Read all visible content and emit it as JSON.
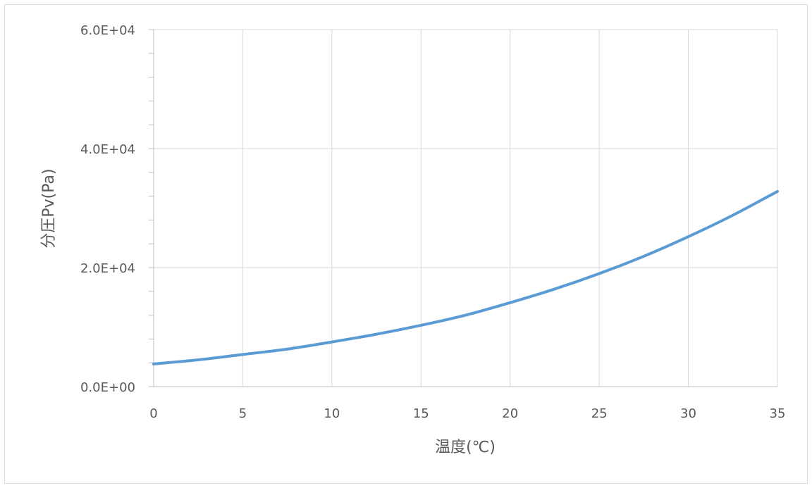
{
  "chart_data": {
    "type": "line",
    "title": "",
    "xlabel": "温度(℃)",
    "ylabel": "分圧Pv(Pa)",
    "xlim": [
      0,
      35
    ],
    "ylim": [
      0,
      60000
    ],
    "x_ticks": [
      0,
      5,
      10,
      15,
      20,
      25,
      30,
      35
    ],
    "x_tick_labels": [
      "0",
      "5",
      "10",
      "15",
      "20",
      "25",
      "30",
      "35"
    ],
    "y_ticks": [
      0,
      20000,
      40000,
      60000
    ],
    "y_tick_labels": [
      "0.0E+00",
      "2.0E+04",
      "4.0E+04",
      "6.0E+04"
    ],
    "y_minor_step": 4000,
    "grid": true,
    "legend": "none",
    "series": [
      {
        "color": "#5b9bd5",
        "x": [
          0,
          2.5,
          5,
          7.5,
          10,
          12.5,
          15,
          17.5,
          20,
          22.5,
          25,
          27.5,
          30,
          32.5,
          35
        ],
        "y": [
          3800,
          4500,
          5400,
          6300,
          7500,
          8800,
          10300,
          12000,
          14100,
          16400,
          19000,
          21900,
          25200,
          28800,
          32800
        ]
      }
    ]
  }
}
